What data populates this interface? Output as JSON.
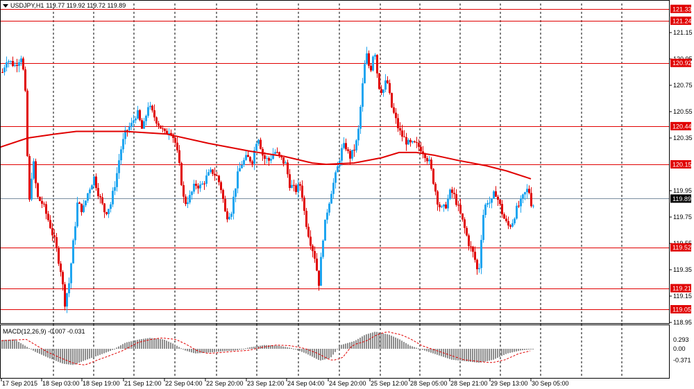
{
  "header": {
    "symbol": "USDJPY,H1",
    "ohlc": "119.77 119.92 119.72 119.89"
  },
  "macd": {
    "label": "MACD(12,26,9) -0.007 -0.031",
    "ticks": [
      "0.293",
      "0.00",
      "-0.371"
    ]
  },
  "price_axis": [
    "121.15",
    "120.95",
    "120.75",
    "120.55",
    "120.35",
    "119.95",
    "119.75",
    "119.55",
    "119.35",
    "119.15",
    "118.95"
  ],
  "levels": [
    {
      "price": "121.33",
      "color": "#e00000"
    },
    {
      "price": "121.24",
      "color": "#e00000"
    },
    {
      "price": "120.92",
      "color": "#e00000"
    },
    {
      "price": "120.44",
      "color": "#e00000"
    },
    {
      "price": "120.15",
      "color": "#e00000"
    },
    {
      "price": "119.52",
      "color": "#e00000"
    },
    {
      "price": "119.21",
      "color": "#e00000"
    },
    {
      "price": "119.05",
      "color": "#e00000"
    }
  ],
  "current_price": {
    "price": "119.89",
    "color": "#000000"
  },
  "time_axis": [
    "17 Sep 2015",
    "18 Sep 03:00",
    "18 Sep 19:00",
    "21 Sep 12:00",
    "22 Sep 04:00",
    "22 Sep 20:00",
    "23 Sep 12:00",
    "24 Sep 04:00",
    "24 Sep 20:00",
    "25 Sep 12:00",
    "28 Sep 05:00",
    "28 Sep 21:00",
    "29 Sep 13:00",
    "30 Sep 05:00"
  ],
  "colors": {
    "bull": "#1ea5f0",
    "bear": "#e00000",
    "ma": "#e00000",
    "level": "#e00000",
    "grid": "#000000"
  }
}
